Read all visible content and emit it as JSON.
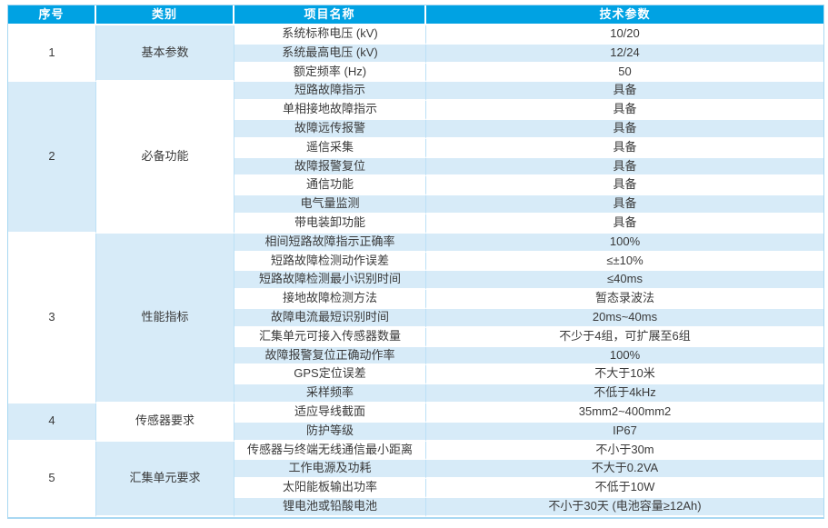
{
  "colors": {
    "header_bg": "#00A2E3",
    "header_text": "#FFFFFF",
    "stripe_blue": "#D7EBF8",
    "border_blue": "#A9D8F2",
    "body_text": "#3A3A3A"
  },
  "table": {
    "headers": [
      "序号",
      "类别",
      "项目名称",
      "技术参数"
    ],
    "groups": [
      {
        "no": "1",
        "category": "基本参数",
        "rows": [
          {
            "name": "系统标称电压 (kV)",
            "value": "10/20"
          },
          {
            "name": "系统最高电压 (kV)",
            "value": "12/24"
          },
          {
            "name": "额定频率 (Hz)",
            "value": "50"
          }
        ]
      },
      {
        "no": "2",
        "category": "必备功能",
        "rows": [
          {
            "name": "短路故障指示",
            "value": "具备"
          },
          {
            "name": "单相接地故障指示",
            "value": "具备"
          },
          {
            "name": "故障远传报警",
            "value": "具备"
          },
          {
            "name": "遥信采集",
            "value": "具备"
          },
          {
            "name": "故障报警复位",
            "value": "具备"
          },
          {
            "name": "通信功能",
            "value": "具备"
          },
          {
            "name": "电气量监测",
            "value": "具备"
          },
          {
            "name": "带电装卸功能",
            "value": "具备"
          }
        ]
      },
      {
        "no": "3",
        "category": "性能指标",
        "rows": [
          {
            "name": "相间短路故障指示正确率",
            "value": "100%"
          },
          {
            "name": "短路故障检测动作误差",
            "value": "≤±10%"
          },
          {
            "name": "短路故障检测最小识别时间",
            "value": "≤40ms"
          },
          {
            "name": "接地故障检测方法",
            "value": "暂态录波法"
          },
          {
            "name": "故障电流最短识别时间",
            "value": "20ms~40ms"
          },
          {
            "name": "汇集单元可接入传感器数量",
            "value": "不少于4组，可扩展至6组"
          },
          {
            "name": "故障报警复位正确动作率",
            "value": "100%"
          },
          {
            "name": "GPS定位误差",
            "value": "不大于10米"
          },
          {
            "name": "采样频率",
            "value": "不低于4kHz"
          }
        ]
      },
      {
        "no": "4",
        "category": "传感器要求",
        "rows": [
          {
            "name": "适应导线截面",
            "value": "35mm2~400mm2"
          },
          {
            "name": "防护等级",
            "value": "IP67"
          }
        ]
      },
      {
        "no": "5",
        "category": "汇集单元要求",
        "rows": [
          {
            "name": "传感器与终端无线通信最小距离",
            "value": "不小于30m"
          },
          {
            "name": "工作电源及功耗",
            "value": "不大于0.2VA"
          },
          {
            "name": "太阳能板输出功率",
            "value": "不低于10W"
          },
          {
            "name": "锂电池或铅酸电池",
            "value": "不小于30天 (电池容量≥12Ah)"
          }
        ]
      }
    ]
  }
}
